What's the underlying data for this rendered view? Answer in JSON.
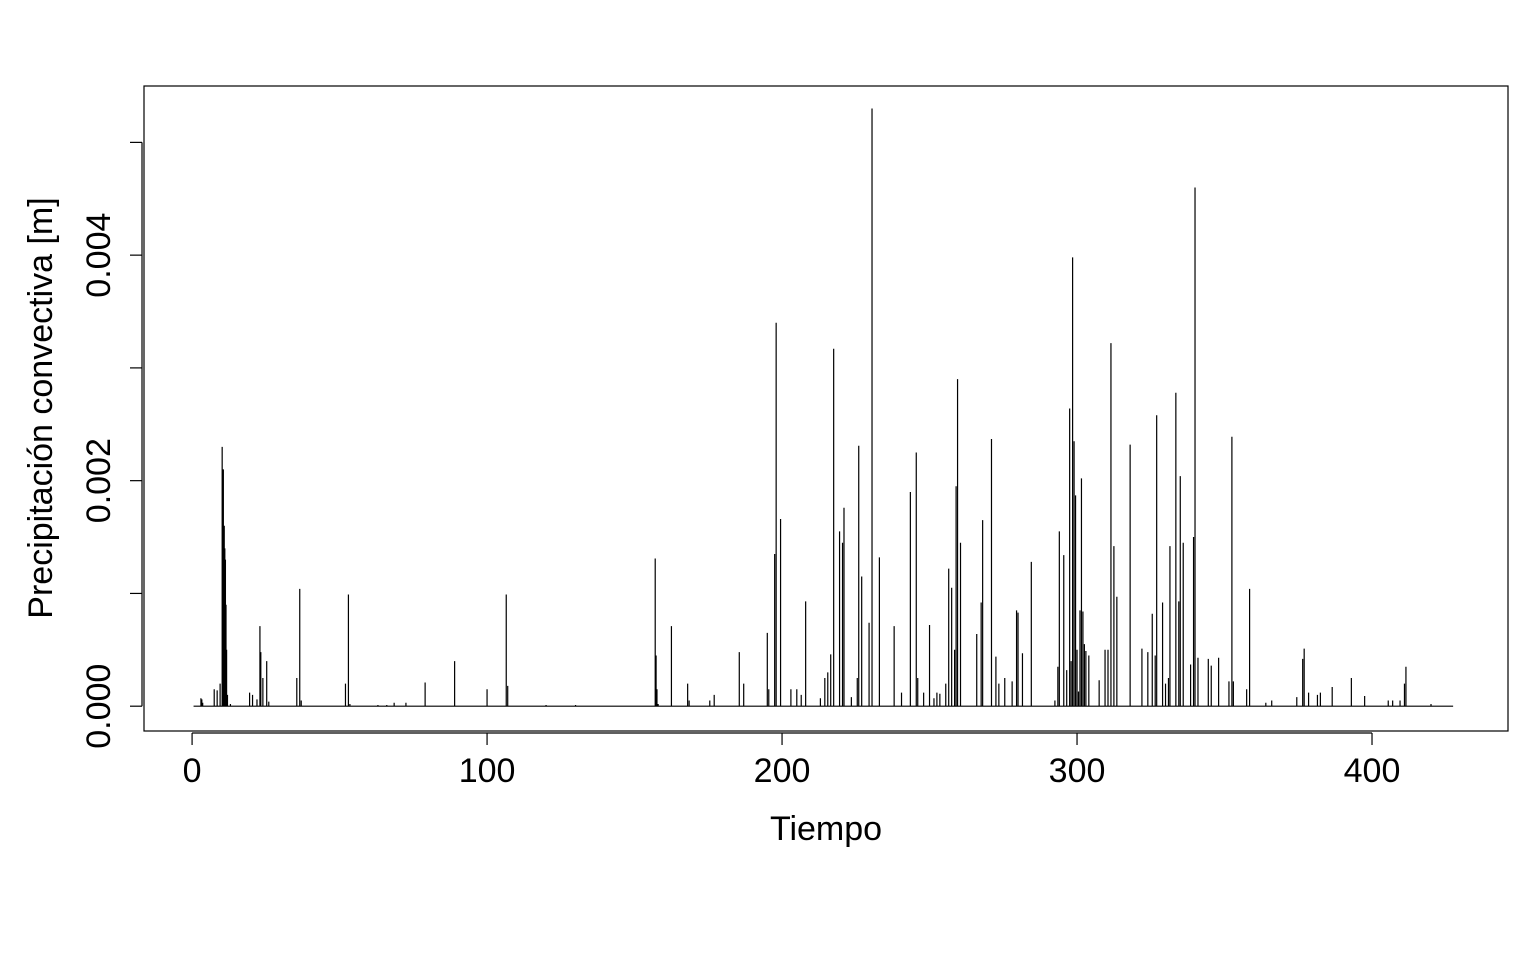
{
  "chart_data": {
    "type": "line",
    "title": "",
    "xlabel": "Tiempo",
    "ylabel": "Precipitación convectiva [m]",
    "xlim": [
      -16.3,
      446.1
    ],
    "ylim": [
      -0.00022,
      0.0055
    ],
    "x_ticks": [
      0,
      100,
      200,
      300,
      400
    ],
    "x_tick_labels": [
      "0",
      "100",
      "200",
      "300",
      "400"
    ],
    "y_ticks": [
      0.0,
      0.001,
      0.002,
      0.003,
      0.004,
      0.005
    ],
    "y_tick_labels": [
      "0.000",
      "",
      "0.002",
      "",
      "0.004",
      ""
    ],
    "grid": false,
    "line_color": "#000000",
    "series": [
      {
        "x": [
          0.5,
          3,
          3.3,
          3.6,
          7.5,
          8.5,
          9.5,
          10.2,
          10.6,
          10.9,
          11.1,
          11.3,
          11.5,
          11.7,
          12,
          13,
          19.5,
          20.5,
          22,
          23,
          23.3,
          24,
          25.3,
          26,
          35.5,
          36.5,
          37,
          52,
          53,
          53.5,
          63,
          66,
          68.5,
          72.5,
          79,
          89,
          100,
          106.5,
          107,
          120,
          130,
          157,
          157.3,
          157.6,
          158,
          162.5,
          168,
          168.5,
          175.5,
          177,
          185.5,
          187,
          195,
          195.5,
          197.5,
          198,
          199.5,
          203,
          205,
          206.5,
          208,
          213,
          214.5,
          215.5,
          216.5,
          217.5,
          219.5,
          220.5,
          221,
          223.5,
          225.5,
          226,
          227,
          229.5,
          230.5,
          233,
          238,
          240.5,
          243.5,
          245.5,
          246,
          248,
          250,
          251.5,
          252.5,
          253.5,
          255.5,
          256.5,
          257.5,
          258.5,
          259,
          259.5,
          260.5,
          266,
          267.5,
          268,
          271,
          272.5,
          273.5,
          275.5,
          278,
          279.5,
          280,
          281.5,
          284.5,
          292.5,
          293.5,
          294,
          295.5,
          296.5,
          297.5,
          298,
          298.5,
          299,
          299.5,
          300,
          300.5,
          301,
          301.5,
          302,
          302.5,
          303,
          304,
          307.5,
          309.5,
          310.5,
          311.5,
          312.5,
          313.5,
          318,
          322,
          324,
          325.5,
          326.5,
          327,
          329,
          330,
          331,
          331.5,
          333.5,
          334.5,
          335,
          336,
          338.5,
          339.5,
          340,
          341,
          344.5,
          345.5,
          348,
          351.5,
          352.5,
          353,
          357.5,
          358.5,
          364,
          366,
          374.5,
          376.5,
          377,
          378.5,
          381.5,
          382.5,
          386.5,
          393,
          397.5,
          405.5,
          407,
          409.5,
          411,
          411.5,
          420,
          427.5
        ],
        "y": [
          0.0,
          7e-05,
          6e-05,
          3e-05,
          0.00015,
          0.00014,
          0.0002,
          0.0023,
          0.0021,
          0.0016,
          0.0014,
          0.0013,
          0.0009,
          0.0005,
          0.0001,
          2e-05,
          0.00012,
          0.0001,
          6e-05,
          0.00071,
          0.00048,
          0.00025,
          0.0004,
          4e-05,
          0.00025,
          0.00104,
          5e-05,
          0.0002,
          0.00099,
          2e-05,
          1e-05,
          1e-05,
          3e-05,
          3e-05,
          0.00021,
          0.0004,
          0.00015,
          0.00099,
          0.00018,
          1e-05,
          1e-05,
          0.00131,
          0.00045,
          0.00015,
          2e-05,
          0.00071,
          0.0002,
          5e-05,
          5e-05,
          0.0001,
          0.00048,
          0.0002,
          0.00065,
          0.00015,
          0.00135,
          0.0034,
          0.00166,
          0.00015,
          0.00015,
          0.0001,
          0.00093,
          7e-05,
          0.00025,
          0.0003,
          0.00046,
          0.00317,
          0.00155,
          0.00145,
          0.00176,
          8e-05,
          0.00025,
          0.00231,
          0.00115,
          0.00074,
          0.0053,
          0.00132,
          0.00071,
          0.00012,
          0.0019,
          0.00225,
          0.00025,
          0.00012,
          0.00072,
          7e-05,
          0.00012,
          0.00011,
          0.0002,
          0.00122,
          0.00105,
          0.0005,
          0.00195,
          0.0029,
          0.00145,
          0.00064,
          0.00092,
          0.00165,
          0.00237,
          0.00044,
          0.0002,
          0.00025,
          0.00022,
          0.00085,
          0.00083,
          0.00047,
          0.00128,
          5e-05,
          0.00035,
          0.00155,
          0.00134,
          0.00032,
          0.00264,
          0.0004,
          0.00398,
          0.00235,
          0.00187,
          0.0005,
          0.00013,
          0.00085,
          0.00202,
          0.00084,
          0.00055,
          0.00049,
          0.00045,
          0.00023,
          0.0005,
          0.0005,
          0.00322,
          0.00142,
          0.00097,
          0.00232,
          0.00051,
          0.00048,
          0.00082,
          0.00045,
          0.00258,
          0.00092,
          0.0002,
          0.00025,
          0.00142,
          0.00278,
          0.00093,
          0.00204,
          0.00145,
          0.00037,
          0.0015,
          0.0046,
          0.00043,
          0.00042,
          0.00036,
          0.00043,
          0.00022,
          0.00239,
          0.00022,
          0.00015,
          0.00104,
          3e-05,
          5e-05,
          8e-05,
          0.00042,
          0.00051,
          0.00012,
          0.0001,
          0.00012,
          0.00017,
          0.00025,
          9e-05,
          5e-05,
          5e-05,
          5e-05,
          0.0002,
          0.00035,
          2e-05,
          0.0
        ]
      }
    ]
  }
}
